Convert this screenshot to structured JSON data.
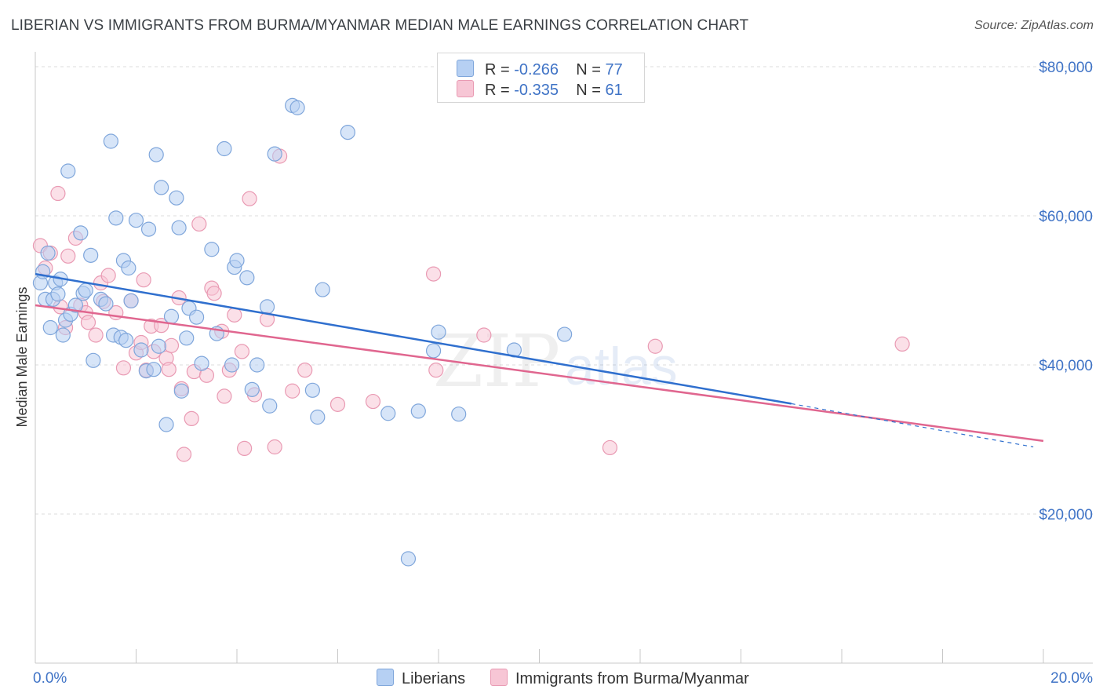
{
  "title": "LIBERIAN VS IMMIGRANTS FROM BURMA/MYANMAR MEDIAN MALE EARNINGS CORRELATION CHART",
  "source": "Source: ZipAtlas.com",
  "watermark": {
    "zip": "ZIP",
    "atlas": "atlas"
  },
  "colors": {
    "blue_fill": "#b6d0f3",
    "blue_stroke": "#7fa6db",
    "blue_line": "#2f6fce",
    "pink_fill": "#f7c6d5",
    "pink_stroke": "#e99ab3",
    "pink_line": "#e0668f",
    "grid": "#dddddd",
    "tick_label": "#3f73c6"
  },
  "legend": {
    "rows": [
      {
        "r_label": "R =",
        "r_value": "-0.266",
        "n_label": "N =",
        "n_value": "77"
      },
      {
        "r_label": "R =",
        "r_value": "-0.335",
        "n_label": "N =",
        "n_value": "61"
      }
    ]
  },
  "bottom_legend": [
    "Liberians",
    "Immigrants from Burma/Myanmar"
  ],
  "chart_data": {
    "type": "scatter",
    "xlabel": "",
    "ylabel": "Median Male Earnings",
    "xlim": [
      0.0,
      20.0
    ],
    "ylim": [
      0,
      82000
    ],
    "x_tick_labels": [
      "0.0%",
      "20.0%"
    ],
    "y_ticks": [
      20000,
      40000,
      60000,
      80000
    ],
    "y_tick_labels": [
      "$20,000",
      "$40,000",
      "$60,000",
      "$80,000"
    ],
    "grid": true,
    "series": [
      {
        "name": "Liberians",
        "trend": {
          "x0": 0.0,
          "y0": 52200,
          "x1": 15.0,
          "y1": 34800,
          "dash_to_x": 19.8,
          "dash_to_y": 29000
        },
        "points": [
          [
            0.1,
            51000
          ],
          [
            0.15,
            52500
          ],
          [
            0.2,
            48800
          ],
          [
            0.25,
            55000
          ],
          [
            0.3,
            45000
          ],
          [
            0.35,
            48800
          ],
          [
            0.4,
            51000
          ],
          [
            0.45,
            49500
          ],
          [
            0.5,
            51500
          ],
          [
            0.55,
            44000
          ],
          [
            0.6,
            46000
          ],
          [
            0.65,
            66000
          ],
          [
            0.7,
            46800
          ],
          [
            0.8,
            48000
          ],
          [
            0.9,
            57700
          ],
          [
            0.95,
            49600
          ],
          [
            1.0,
            50000
          ],
          [
            1.1,
            54700
          ],
          [
            1.15,
            40600
          ],
          [
            1.3,
            48800
          ],
          [
            1.4,
            48200
          ],
          [
            1.5,
            70000
          ],
          [
            1.55,
            44000
          ],
          [
            1.6,
            59700
          ],
          [
            1.7,
            43700
          ],
          [
            1.75,
            54000
          ],
          [
            1.8,
            43300
          ],
          [
            1.85,
            53000
          ],
          [
            1.9,
            48600
          ],
          [
            2.0,
            59400
          ],
          [
            2.1,
            42000
          ],
          [
            2.2,
            39200
          ],
          [
            2.25,
            58200
          ],
          [
            2.35,
            39400
          ],
          [
            2.4,
            68200
          ],
          [
            2.45,
            42500
          ],
          [
            2.5,
            63800
          ],
          [
            2.6,
            32000
          ],
          [
            2.7,
            46500
          ],
          [
            2.8,
            62400
          ],
          [
            2.85,
            58400
          ],
          [
            2.9,
            36500
          ],
          [
            3.0,
            43600
          ],
          [
            3.05,
            47600
          ],
          [
            3.2,
            46400
          ],
          [
            3.3,
            40200
          ],
          [
            3.5,
            55500
          ],
          [
            3.6,
            44200
          ],
          [
            3.75,
            69000
          ],
          [
            3.9,
            40000
          ],
          [
            3.95,
            53100
          ],
          [
            4.0,
            54000
          ],
          [
            4.2,
            51700
          ],
          [
            4.3,
            36700
          ],
          [
            4.4,
            40000
          ],
          [
            4.6,
            47800
          ],
          [
            4.65,
            34500
          ],
          [
            4.75,
            68300
          ],
          [
            5.1,
            74800
          ],
          [
            5.2,
            74500
          ],
          [
            5.5,
            36600
          ],
          [
            5.6,
            33000
          ],
          [
            5.7,
            50100
          ],
          [
            6.2,
            71200
          ],
          [
            7.0,
            33500
          ],
          [
            7.4,
            14000
          ],
          [
            7.6,
            33800
          ],
          [
            7.9,
            41900
          ],
          [
            8.0,
            44400
          ],
          [
            8.4,
            33400
          ],
          [
            9.5,
            42000
          ],
          [
            10.5,
            44100
          ]
        ]
      },
      {
        "name": "Immigrants from Burma/Myanmar",
        "trend": {
          "x0": 0.0,
          "y0": 48000,
          "x1": 20.0,
          "y1": 29800
        },
        "points": [
          [
            0.1,
            56000
          ],
          [
            0.2,
            53000
          ],
          [
            0.3,
            55000
          ],
          [
            0.45,
            63000
          ],
          [
            0.5,
            47800
          ],
          [
            0.6,
            45000
          ],
          [
            0.65,
            54600
          ],
          [
            0.8,
            57000
          ],
          [
            0.9,
            48000
          ],
          [
            1.0,
            47000
          ],
          [
            1.05,
            45700
          ],
          [
            1.2,
            44000
          ],
          [
            1.3,
            51000
          ],
          [
            1.35,
            48500
          ],
          [
            1.45,
            52000
          ],
          [
            1.6,
            47000
          ],
          [
            1.75,
            39600
          ],
          [
            1.9,
            48600
          ],
          [
            2.0,
            41600
          ],
          [
            2.1,
            43000
          ],
          [
            2.15,
            51400
          ],
          [
            2.2,
            39300
          ],
          [
            2.3,
            45200
          ],
          [
            2.35,
            41800
          ],
          [
            2.5,
            45300
          ],
          [
            2.6,
            40900
          ],
          [
            2.65,
            39400
          ],
          [
            2.7,
            42600
          ],
          [
            2.85,
            49000
          ],
          [
            2.9,
            36800
          ],
          [
            2.95,
            28000
          ],
          [
            3.1,
            32800
          ],
          [
            3.15,
            39100
          ],
          [
            3.25,
            58900
          ],
          [
            3.4,
            38600
          ],
          [
            3.5,
            50300
          ],
          [
            3.55,
            49600
          ],
          [
            3.7,
            44500
          ],
          [
            3.75,
            35800
          ],
          [
            3.85,
            39300
          ],
          [
            3.95,
            46700
          ],
          [
            4.1,
            41800
          ],
          [
            4.15,
            28800
          ],
          [
            4.25,
            62300
          ],
          [
            4.35,
            36000
          ],
          [
            4.6,
            46100
          ],
          [
            4.75,
            29000
          ],
          [
            4.85,
            68000
          ],
          [
            5.1,
            36500
          ],
          [
            5.35,
            39300
          ],
          [
            6.0,
            34700
          ],
          [
            6.7,
            35100
          ],
          [
            7.9,
            52200
          ],
          [
            7.95,
            39300
          ],
          [
            8.9,
            44000
          ],
          [
            11.4,
            28900
          ],
          [
            12.3,
            42500
          ],
          [
            17.2,
            42800
          ]
        ]
      }
    ]
  }
}
